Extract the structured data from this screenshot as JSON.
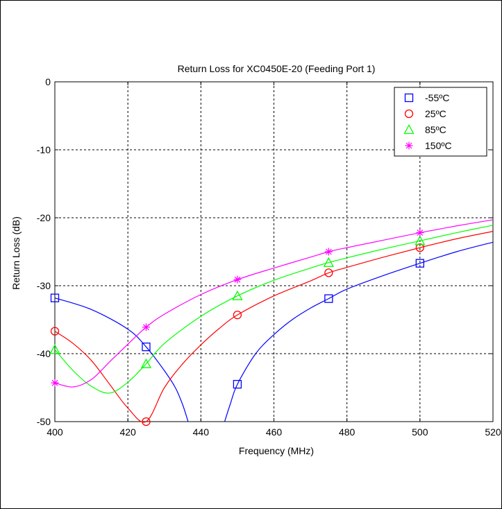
{
  "chart_data": {
    "type": "line",
    "title": "Return Loss for XC0450E-20 (Feeding Port 1)",
    "xlabel": "Frequency (MHz)",
    "ylabel": "Return Loss (dB)",
    "xlim": [
      400,
      520
    ],
    "ylim": [
      -50,
      0
    ],
    "xticks": [
      400,
      420,
      440,
      460,
      480,
      500,
      520
    ],
    "yticks": [
      -50,
      -40,
      -30,
      -20,
      -10,
      0
    ],
    "grid": true,
    "legend_position": "top-right",
    "series": [
      {
        "name": "-55ºC",
        "color": "#0000ff",
        "marker": "square",
        "marker_x": [
          400,
          425,
          450,
          475,
          500
        ],
        "marker_y": [
          -31.8,
          -39.0,
          -44.5,
          -31.9,
          -26.7
        ],
        "curve": [
          [
            400,
            -31.8
          ],
          [
            410,
            -33.5
          ],
          [
            420,
            -36.4
          ],
          [
            425,
            -39.0
          ],
          [
            430,
            -42.5
          ],
          [
            433,
            -45.0
          ],
          [
            435,
            -47.5
          ],
          [
            436.5,
            -50
          ]
        ],
        "curve2": [
          [
            446.5,
            -50
          ],
          [
            448,
            -47.5
          ],
          [
            450,
            -44.5
          ],
          [
            455,
            -40.0
          ],
          [
            460,
            -37.2
          ],
          [
            465,
            -35.0
          ],
          [
            470,
            -33.3
          ],
          [
            475,
            -31.9
          ],
          [
            480,
            -30.5
          ],
          [
            490,
            -28.5
          ],
          [
            500,
            -26.7
          ],
          [
            510,
            -25.0
          ],
          [
            520,
            -23.6
          ]
        ]
      },
      {
        "name": "25ºC",
        "color": "#ff0000",
        "marker": "circle",
        "marker_x": [
          400,
          425,
          450,
          475,
          500
        ],
        "marker_y": [
          -36.7,
          -50.0,
          -34.3,
          -28.1,
          -24.4
        ],
        "curve": [
          [
            400,
            -36.7
          ],
          [
            405,
            -38.5
          ],
          [
            410,
            -41.0
          ],
          [
            415,
            -44.5
          ],
          [
            420,
            -48.0
          ],
          [
            425,
            -50.0
          ],
          [
            430,
            -45.0
          ],
          [
            435,
            -41.5
          ],
          [
            440,
            -38.7
          ],
          [
            445,
            -36.3
          ],
          [
            450,
            -34.3
          ],
          [
            460,
            -31.5
          ],
          [
            470,
            -29.3
          ],
          [
            475,
            -28.1
          ],
          [
            480,
            -27.3
          ],
          [
            490,
            -25.8
          ],
          [
            500,
            -24.4
          ],
          [
            510,
            -23.1
          ],
          [
            520,
            -22.0
          ]
        ]
      },
      {
        "name": "85ºC",
        "color": "#00ff00",
        "marker": "triangle",
        "marker_x": [
          400,
          425,
          450,
          475,
          500
        ],
        "marker_y": [
          -39.4,
          -41.5,
          -31.5,
          -26.6,
          -23.4
        ],
        "curve": [
          [
            400,
            -39.4
          ],
          [
            405,
            -42.5
          ],
          [
            410,
            -44.8
          ],
          [
            415,
            -45.8
          ],
          [
            420,
            -44.2
          ],
          [
            425,
            -41.5
          ],
          [
            430,
            -38.5
          ],
          [
            440,
            -34.5
          ],
          [
            450,
            -31.5
          ],
          [
            460,
            -29.2
          ],
          [
            470,
            -27.4
          ],
          [
            475,
            -26.6
          ],
          [
            480,
            -25.9
          ],
          [
            490,
            -24.6
          ],
          [
            500,
            -23.4
          ],
          [
            510,
            -22.2
          ],
          [
            520,
            -21.1
          ]
        ]
      },
      {
        "name": "150ºC",
        "color": "#ff00ff",
        "marker": "asterisk",
        "marker_x": [
          400,
          425,
          450,
          475,
          500
        ],
        "marker_y": [
          -44.3,
          -36.1,
          -29.1,
          -25.0,
          -22.2
        ],
        "curve": [
          [
            400,
            -44.3
          ],
          [
            405,
            -44.9
          ],
          [
            410,
            -43.8
          ],
          [
            415,
            -41.2
          ],
          [
            420,
            -38.6
          ],
          [
            425,
            -36.1
          ],
          [
            430,
            -34.2
          ],
          [
            440,
            -31.3
          ],
          [
            450,
            -29.1
          ],
          [
            460,
            -27.4
          ],
          [
            470,
            -25.8
          ],
          [
            475,
            -25.0
          ],
          [
            480,
            -24.4
          ],
          [
            490,
            -23.3
          ],
          [
            500,
            -22.2
          ],
          [
            510,
            -21.2
          ],
          [
            520,
            -20.3
          ]
        ]
      }
    ]
  }
}
